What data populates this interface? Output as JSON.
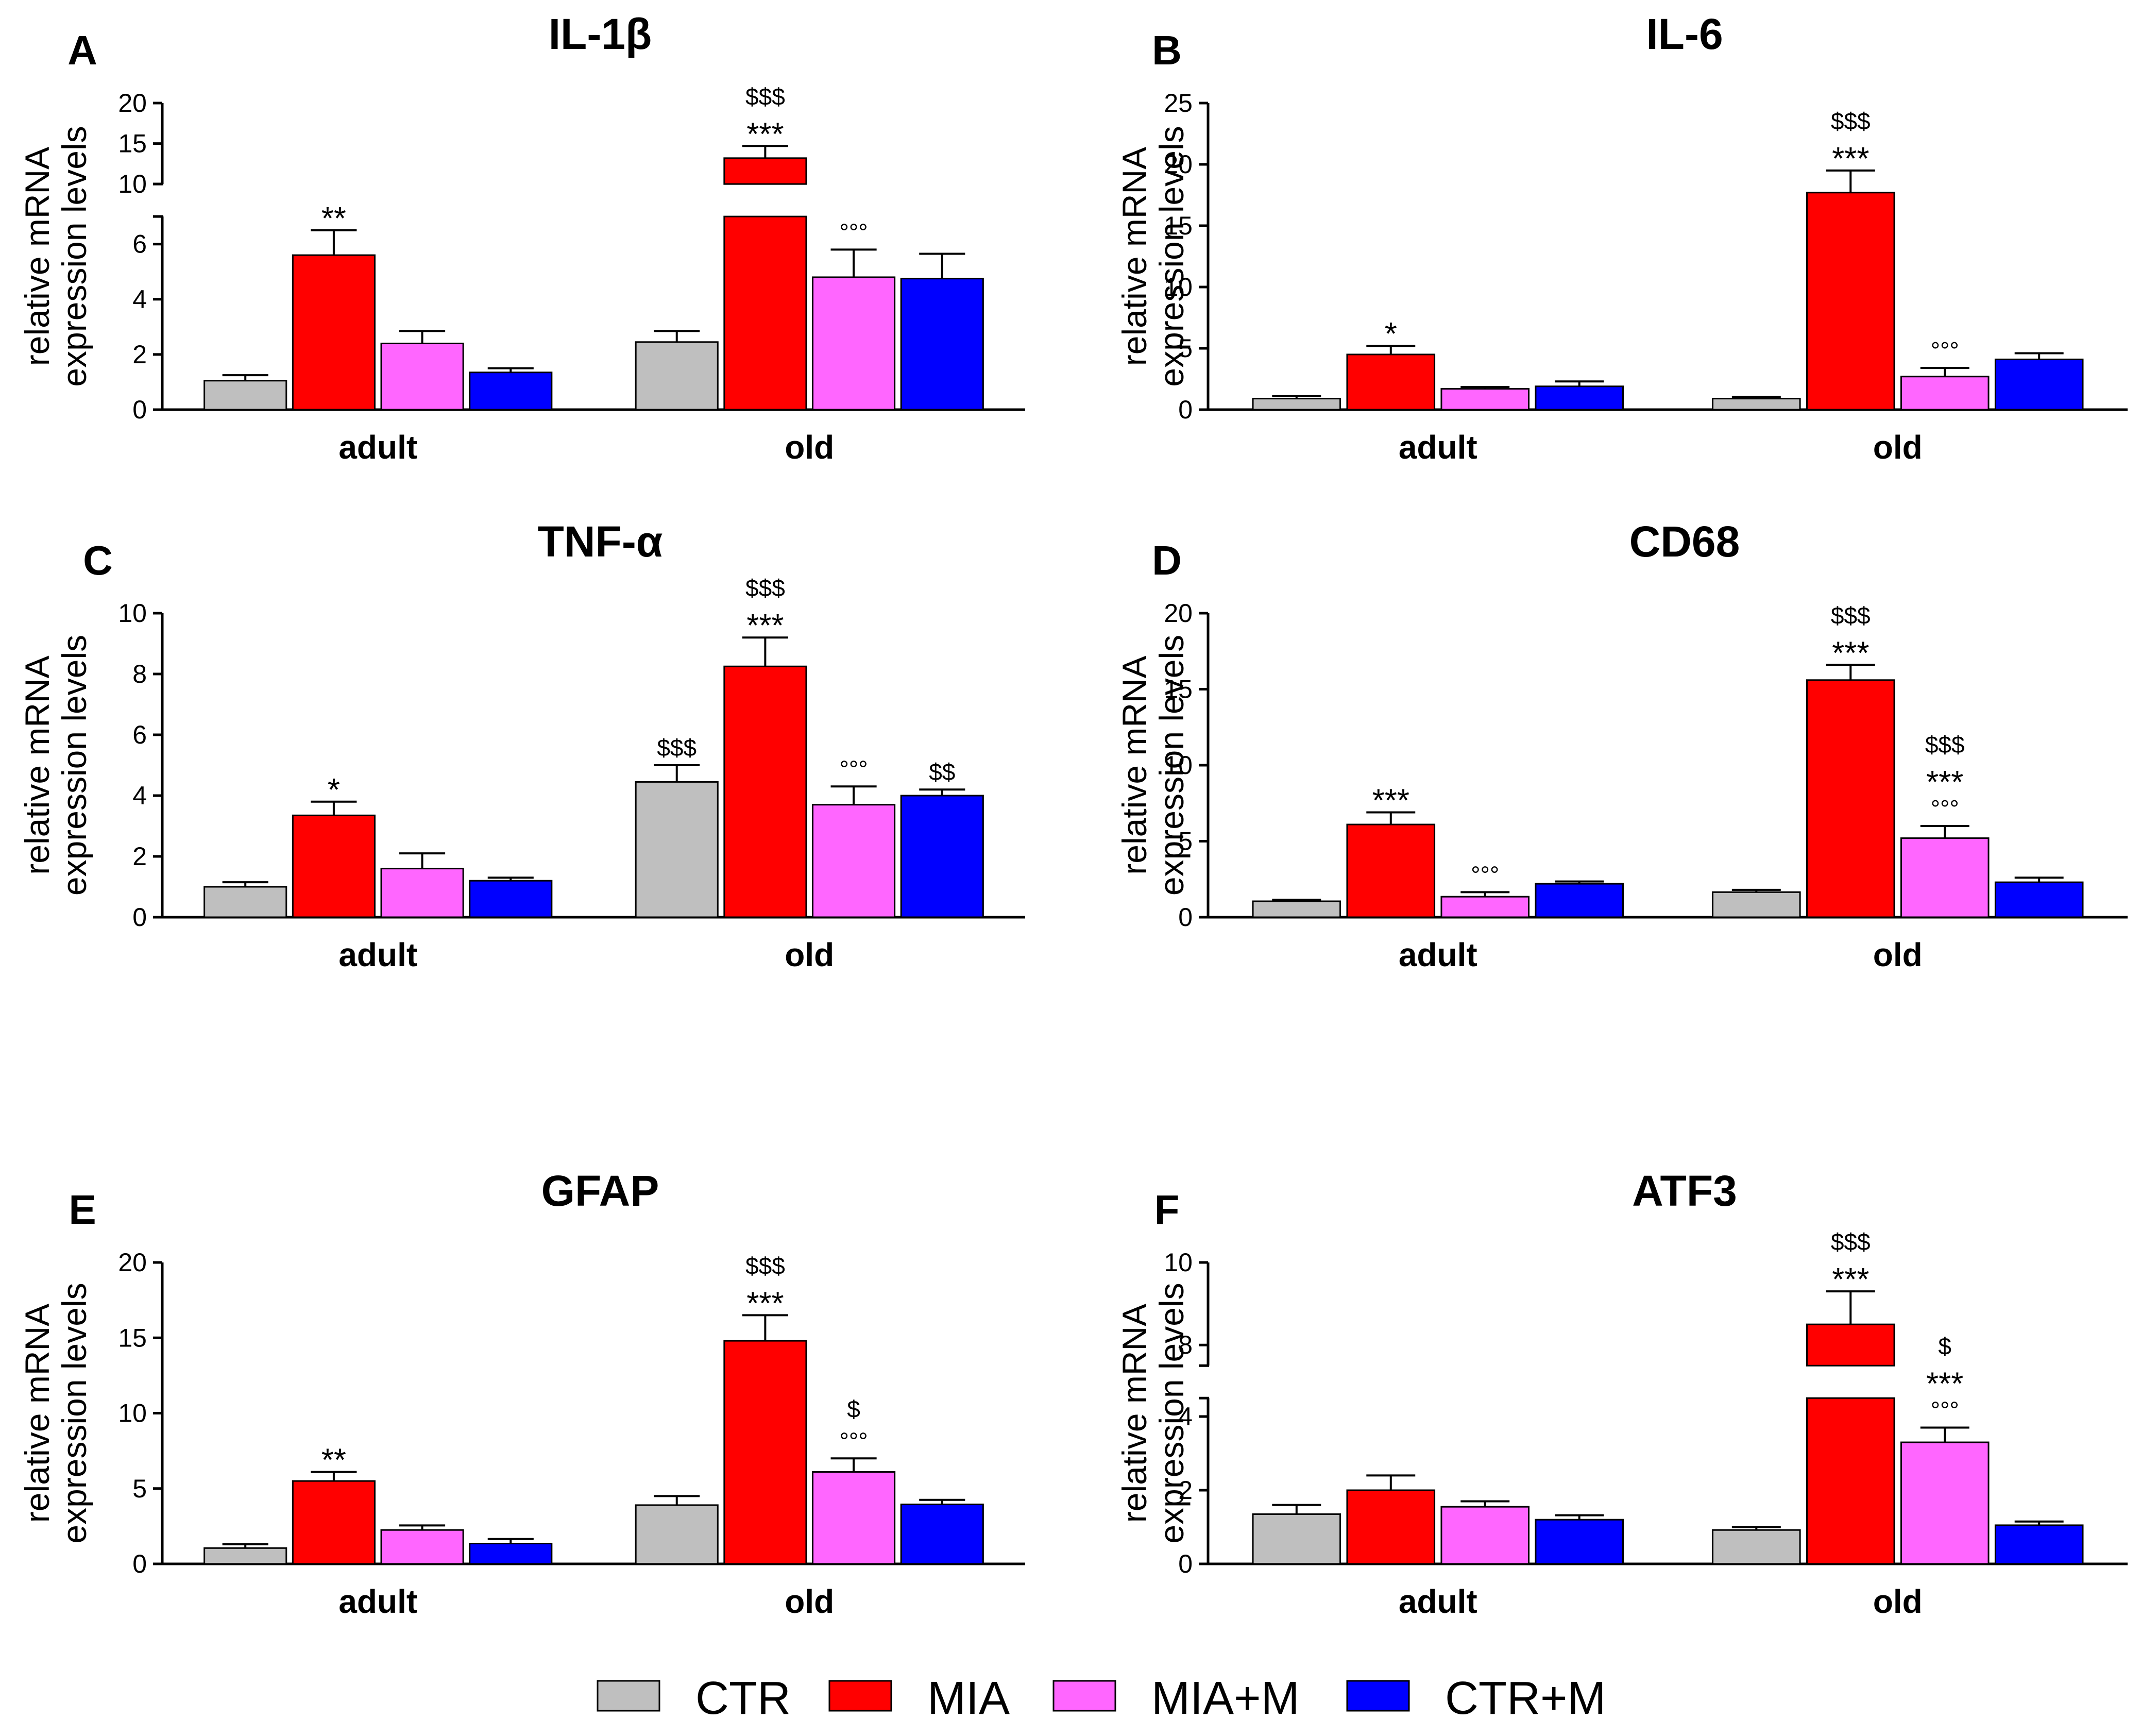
{
  "legend": [
    {
      "name": "CTR",
      "color": "#bfbfbf"
    },
    {
      "name": "MIA",
      "color": "#ff0000"
    },
    {
      "name": "MIA+M",
      "color": "#ff66ff"
    },
    {
      "name": "CTR+M",
      "color": "#0000ff"
    }
  ],
  "chart_data": [
    {
      "panel": "A",
      "type": "bar",
      "title": "IL-1β",
      "ylabel": [
        "relative mRNA",
        "expression levels"
      ],
      "categories": [
        "adult",
        "old"
      ],
      "axis_break": {
        "lower": [
          0,
          7
        ],
        "upper": [
          10,
          20
        ],
        "lower_ticks": [
          0,
          2,
          4,
          6
        ],
        "upper_ticks": [
          10,
          15,
          20
        ]
      },
      "series": [
        {
          "name": "CTR",
          "values": [
            1.05,
            2.45
          ],
          "errors": [
            0.2,
            0.4
          ]
        },
        {
          "name": "MIA",
          "values": [
            5.6,
            13.2
          ],
          "errors": [
            0.9,
            1.5
          ]
        },
        {
          "name": "MIA+M",
          "values": [
            2.4,
            4.8
          ],
          "errors": [
            0.45,
            1.0
          ]
        },
        {
          "name": "CTR+M",
          "values": [
            1.35,
            4.75
          ],
          "errors": [
            0.15,
            0.9
          ]
        }
      ],
      "annotations": [
        {
          "category": 0,
          "series": 1,
          "lines": [
            "**"
          ]
        },
        {
          "category": 1,
          "series": 1,
          "lines": [
            "$$$",
            "***"
          ]
        },
        {
          "category": 1,
          "series": 2,
          "lines": [
            "°°°"
          ]
        }
      ]
    },
    {
      "panel": "B",
      "type": "bar",
      "title": "IL-6",
      "ylabel": [
        "relative mRNA",
        "expression levels"
      ],
      "categories": [
        "adult",
        "old"
      ],
      "ylim": [
        0,
        25
      ],
      "yticks": [
        0,
        5,
        10,
        15,
        20,
        25
      ],
      "series": [
        {
          "name": "CTR",
          "values": [
            0.9,
            0.9
          ],
          "errors": [
            0.2,
            0.15
          ]
        },
        {
          "name": "MIA",
          "values": [
            4.5,
            17.7
          ],
          "errors": [
            0.7,
            1.8
          ]
        },
        {
          "name": "MIA+M",
          "values": [
            1.7,
            2.7
          ],
          "errors": [
            0.15,
            0.7
          ]
        },
        {
          "name": "CTR+M",
          "values": [
            1.9,
            4.1
          ],
          "errors": [
            0.4,
            0.5
          ]
        }
      ],
      "annotations": [
        {
          "category": 0,
          "series": 1,
          "lines": [
            "*"
          ]
        },
        {
          "category": 1,
          "series": 1,
          "lines": [
            "$$$",
            "***"
          ]
        },
        {
          "category": 1,
          "series": 2,
          "lines": [
            "°°°"
          ]
        }
      ]
    },
    {
      "panel": "C",
      "type": "bar",
      "title": "TNF-α",
      "ylabel": [
        "relative mRNA",
        "expression levels"
      ],
      "categories": [
        "adult",
        "old"
      ],
      "ylim": [
        0,
        10
      ],
      "yticks": [
        0,
        2,
        4,
        6,
        8,
        10
      ],
      "series": [
        {
          "name": "CTR",
          "values": [
            1.0,
            4.45
          ],
          "errors": [
            0.15,
            0.55
          ]
        },
        {
          "name": "MIA",
          "values": [
            3.35,
            8.25
          ],
          "errors": [
            0.45,
            0.95
          ]
        },
        {
          "name": "MIA+M",
          "values": [
            1.6,
            3.7
          ],
          "errors": [
            0.5,
            0.6
          ]
        },
        {
          "name": "CTR+M",
          "values": [
            1.2,
            4.0
          ],
          "errors": [
            0.1,
            0.2
          ]
        }
      ],
      "annotations": [
        {
          "category": 0,
          "series": 1,
          "lines": [
            "*"
          ]
        },
        {
          "category": 1,
          "series": 0,
          "lines": [
            "$$$"
          ]
        },
        {
          "category": 1,
          "series": 1,
          "lines": [
            "$$$",
            "***"
          ]
        },
        {
          "category": 1,
          "series": 2,
          "lines": [
            "°°°"
          ]
        },
        {
          "category": 1,
          "series": 3,
          "lines": [
            "$$"
          ]
        }
      ]
    },
    {
      "panel": "D",
      "type": "bar",
      "title": "CD68",
      "ylabel": [
        "relative mRNA",
        "expression levels"
      ],
      "categories": [
        "adult",
        "old"
      ],
      "ylim": [
        0,
        20
      ],
      "yticks": [
        0,
        5,
        10,
        15,
        20
      ],
      "series": [
        {
          "name": "CTR",
          "values": [
            1.05,
            1.65
          ],
          "errors": [
            0.1,
            0.15
          ]
        },
        {
          "name": "MIA",
          "values": [
            6.1,
            15.6
          ],
          "errors": [
            0.8,
            1.0
          ]
        },
        {
          "name": "MIA+M",
          "values": [
            1.35,
            5.2
          ],
          "errors": [
            0.3,
            0.8
          ]
        },
        {
          "name": "CTR+M",
          "values": [
            2.2,
            2.3
          ],
          "errors": [
            0.15,
            0.3
          ]
        }
      ],
      "annotations": [
        {
          "category": 0,
          "series": 1,
          "lines": [
            "***"
          ]
        },
        {
          "category": 0,
          "series": 2,
          "lines": [
            "°°°"
          ]
        },
        {
          "category": 1,
          "series": 1,
          "lines": [
            "$$$",
            "***"
          ]
        },
        {
          "category": 1,
          "series": 2,
          "lines": [
            "$$$",
            "***",
            "°°°"
          ]
        }
      ]
    },
    {
      "panel": "E",
      "type": "bar",
      "title": "GFAP",
      "ylabel": [
        "relative mRNA",
        "expression levels"
      ],
      "categories": [
        "adult",
        "old"
      ],
      "ylim": [
        0,
        20
      ],
      "yticks": [
        0,
        5,
        10,
        15,
        20
      ],
      "series": [
        {
          "name": "CTR",
          "values": [
            1.05,
            3.9
          ],
          "errors": [
            0.25,
            0.6
          ]
        },
        {
          "name": "MIA",
          "values": [
            5.5,
            14.8
          ],
          "errors": [
            0.6,
            1.7
          ]
        },
        {
          "name": "MIA+M",
          "values": [
            2.25,
            6.1
          ],
          "errors": [
            0.3,
            0.9
          ]
        },
        {
          "name": "CTR+M",
          "values": [
            1.35,
            3.95
          ],
          "errors": [
            0.3,
            0.3
          ]
        }
      ],
      "annotations": [
        {
          "category": 0,
          "series": 1,
          "lines": [
            "**"
          ]
        },
        {
          "category": 1,
          "series": 1,
          "lines": [
            "$$$",
            "***"
          ]
        },
        {
          "category": 1,
          "series": 2,
          "lines": [
            "$",
            "°°°"
          ]
        }
      ]
    },
    {
      "panel": "F",
      "type": "bar",
      "title": "ATF3",
      "ylabel": [
        "relative mRNA",
        "expression levels"
      ],
      "categories": [
        "adult",
        "old"
      ],
      "axis_break": {
        "lower": [
          0,
          4.5
        ],
        "upper": [
          7.5,
          10
        ],
        "lower_ticks": [
          0,
          2,
          4
        ],
        "upper_ticks": [
          8,
          10
        ]
      },
      "series": [
        {
          "name": "CTR",
          "values": [
            1.35,
            0.92
          ],
          "errors": [
            0.25,
            0.08
          ]
        },
        {
          "name": "MIA",
          "values": [
            2.0,
            8.5
          ],
          "errors": [
            0.4,
            0.8
          ]
        },
        {
          "name": "MIA+M",
          "values": [
            1.55,
            3.3
          ],
          "errors": [
            0.15,
            0.4
          ]
        },
        {
          "name": "CTR+M",
          "values": [
            1.2,
            1.05
          ],
          "errors": [
            0.12,
            0.1
          ]
        }
      ],
      "annotations": [
        {
          "category": 1,
          "series": 1,
          "lines": [
            "$$$",
            "***"
          ]
        },
        {
          "category": 1,
          "series": 2,
          "lines": [
            "$",
            "***",
            "°°°"
          ]
        }
      ]
    }
  ]
}
